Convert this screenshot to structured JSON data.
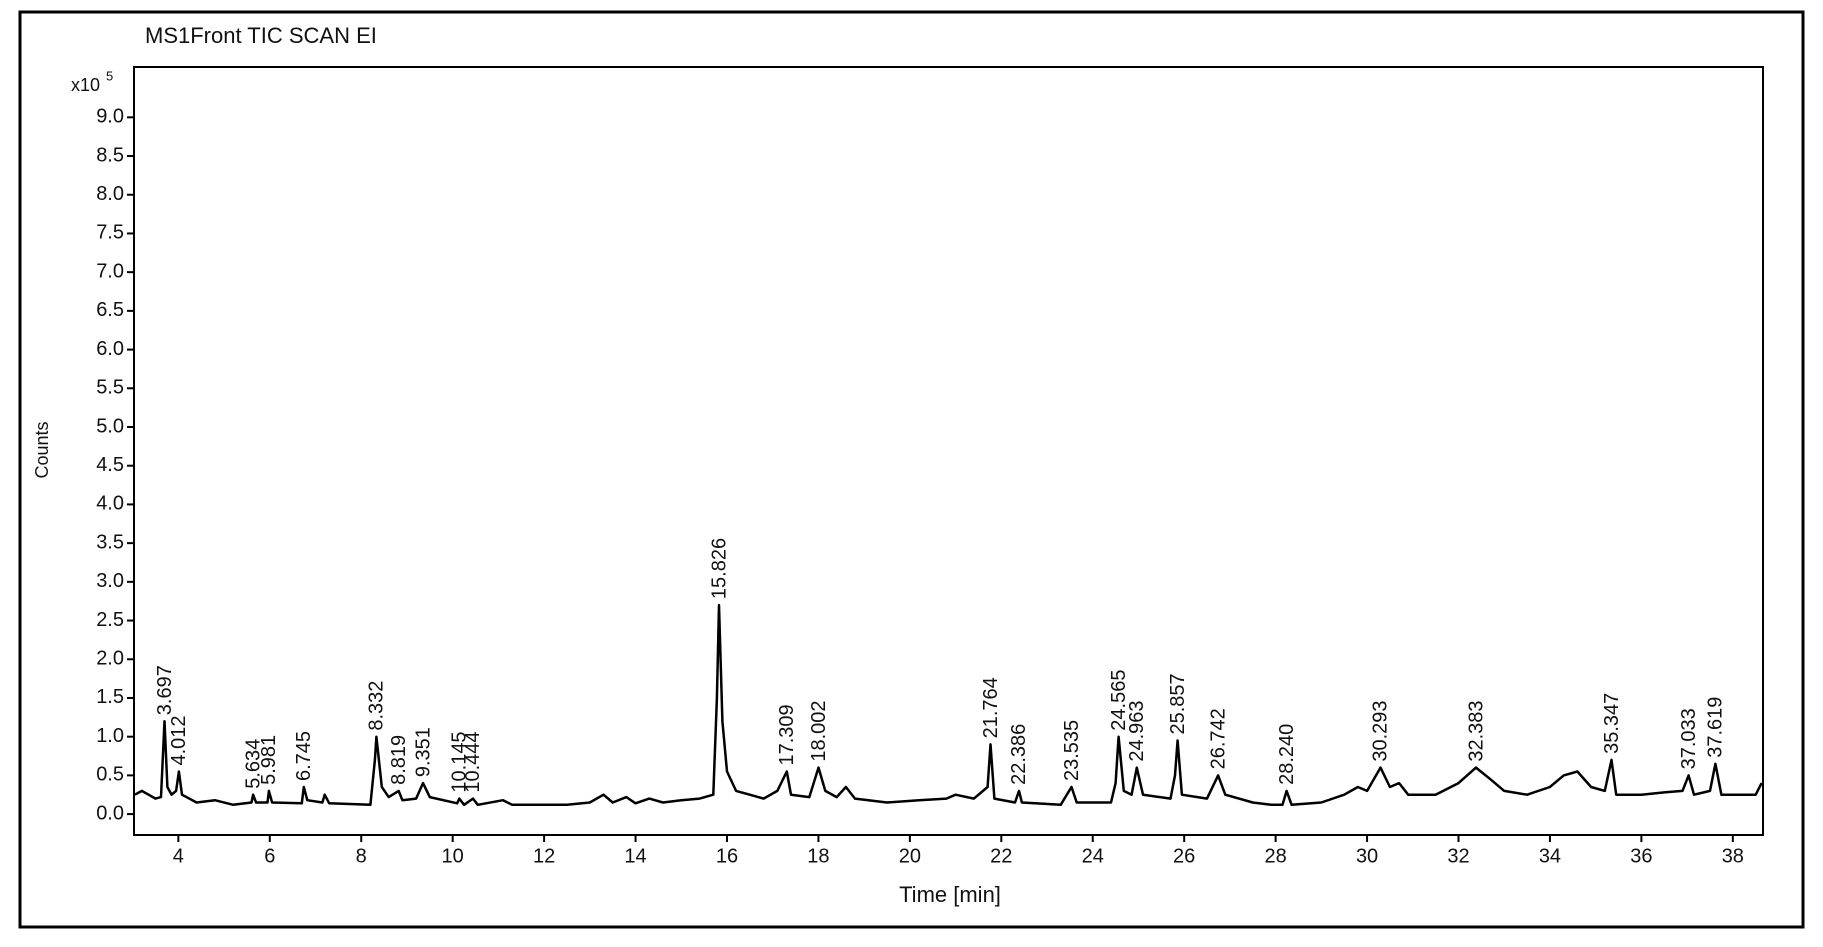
{
  "chart_data": {
    "type": "line",
    "title": "MS1Front TIC SCAN EI",
    "y_label": "Counts",
    "x_label": "Time [min]",
    "y_multiplier": "x10",
    "y_exponent": 5,
    "color": "#000000",
    "grid": false,
    "xlim": [
      3.03,
      38.66
    ],
    "xticks": [
      4,
      6,
      8,
      10,
      12,
      14,
      16,
      18,
      20,
      22,
      24,
      26,
      28,
      30,
      32,
      34,
      36,
      38
    ],
    "ylim": [
      -0.27,
      9.65
    ],
    "yticks": [
      {
        "value": 0,
        "label": "0.0"
      },
      0.5,
      {
        "value": 1,
        "label": "1.0"
      },
      1.5,
      {
        "value": 2,
        "label": "2.0"
      },
      2.5,
      {
        "value": 3,
        "label": "3.0"
      },
      3.5,
      {
        "value": 4,
        "label": "4.0"
      },
      4.5,
      {
        "value": 5,
        "label": "5.0"
      },
      5.5,
      {
        "value": 6,
        "label": "6.0"
      },
      6.5,
      {
        "value": 7,
        "label": "7.0"
      },
      7.5,
      {
        "value": 8,
        "label": "8.0"
      },
      8.5,
      {
        "value": 9,
        "label": "9.0"
      }
    ],
    "x": [
      3.05,
      3.2,
      3.35,
      3.5,
      3.62,
      3.697,
      3.76,
      3.85,
      3.95,
      4.012,
      4.08,
      4.4,
      4.8,
      5.2,
      5.6,
      5.634,
      5.7,
      5.95,
      5.981,
      6.05,
      6.7,
      6.745,
      6.82,
      7.15,
      7.2,
      7.3,
      8.2,
      8.3,
      8.332,
      8.45,
      8.6,
      8.819,
      8.9,
      9.2,
      9.351,
      9.5,
      10.1,
      10.145,
      10.25,
      10.444,
      10.55,
      11.1,
      11.3,
      12.5,
      13.0,
      13.3,
      13.5,
      13.8,
      14.0,
      14.3,
      14.6,
      15.0,
      15.4,
      15.7,
      15.78,
      15.826,
      15.9,
      16.0,
      16.2,
      16.5,
      16.8,
      17.1,
      17.309,
      17.4,
      17.8,
      18.002,
      18.15,
      18.4,
      18.6,
      18.8,
      19.5,
      20.2,
      20.8,
      21.0,
      21.4,
      21.7,
      21.764,
      21.85,
      22.3,
      22.386,
      22.45,
      23.3,
      23.535,
      23.65,
      24.4,
      24.5,
      24.565,
      24.68,
      24.85,
      24.963,
      25.1,
      25.7,
      25.8,
      25.857,
      25.95,
      26.5,
      26.742,
      26.9,
      27.5,
      27.9,
      28.15,
      28.24,
      28.35,
      29.0,
      29.5,
      29.8,
      30.0,
      30.293,
      30.5,
      30.7,
      30.9,
      31.5,
      32.0,
      32.383,
      32.7,
      33.0,
      33.5,
      34.0,
      34.3,
      34.6,
      34.9,
      35.2,
      35.347,
      35.45,
      36.0,
      36.5,
      36.9,
      37.033,
      37.15,
      37.5,
      37.619,
      37.75,
      38.2,
      38.5,
      38.63
    ],
    "values": [
      0.25,
      0.3,
      0.25,
      0.2,
      0.22,
      1.2,
      0.35,
      0.25,
      0.3,
      0.55,
      0.25,
      0.15,
      0.18,
      0.12,
      0.15,
      0.25,
      0.15,
      0.15,
      0.3,
      0.15,
      0.14,
      0.35,
      0.18,
      0.15,
      0.25,
      0.14,
      0.12,
      0.7,
      1.0,
      0.35,
      0.22,
      0.3,
      0.18,
      0.2,
      0.4,
      0.22,
      0.14,
      0.2,
      0.12,
      0.2,
      0.12,
      0.18,
      0.12,
      0.12,
      0.15,
      0.25,
      0.15,
      0.22,
      0.14,
      0.2,
      0.15,
      0.18,
      0.2,
      0.25,
      1.5,
      2.7,
      1.2,
      0.55,
      0.3,
      0.25,
      0.2,
      0.3,
      0.55,
      0.25,
      0.22,
      0.6,
      0.3,
      0.22,
      0.35,
      0.2,
      0.15,
      0.18,
      0.2,
      0.25,
      0.2,
      0.35,
      0.9,
      0.2,
      0.15,
      0.3,
      0.15,
      0.12,
      0.35,
      0.15,
      0.15,
      0.4,
      1.0,
      0.3,
      0.25,
      0.6,
      0.25,
      0.2,
      0.5,
      0.95,
      0.25,
      0.2,
      0.5,
      0.25,
      0.15,
      0.12,
      0.12,
      0.3,
      0.12,
      0.15,
      0.25,
      0.35,
      0.3,
      0.6,
      0.35,
      0.4,
      0.25,
      0.25,
      0.4,
      0.6,
      0.45,
      0.3,
      0.25,
      0.35,
      0.5,
      0.55,
      0.35,
      0.3,
      0.7,
      0.25,
      0.25,
      0.28,
      0.3,
      0.5,
      0.25,
      0.3,
      0.65,
      0.25,
      0.25,
      0.25,
      0.4
    ],
    "annotations": [
      {
        "text": "3.697",
        "x": 3.697,
        "y": 1.2
      },
      {
        "text": "4.012",
        "x": 4.012,
        "y": 0.55
      },
      {
        "text": "5.634",
        "x": 5.634,
        "y": 0.25
      },
      {
        "text": "5.981",
        "x": 5.981,
        "y": 0.3
      },
      {
        "text": "6.745",
        "x": 6.745,
        "y": 0.35
      },
      {
        "text": "8.332",
        "x": 8.332,
        "y": 1.0
      },
      {
        "text": "8.819",
        "x": 8.819,
        "y": 0.3
      },
      {
        "text": "9.351",
        "x": 9.351,
        "y": 0.4
      },
      {
        "text": "10.145",
        "x": 10.145,
        "y": 0.2
      },
      {
        "text": "10.444",
        "x": 10.444,
        "y": 0.2
      },
      {
        "text": "15.826",
        "x": 15.826,
        "y": 2.7
      },
      {
        "text": "17.309",
        "x": 17.309,
        "y": 0.55
      },
      {
        "text": "18.002",
        "x": 18.002,
        "y": 0.6
      },
      {
        "text": "21.764",
        "x": 21.764,
        "y": 0.9
      },
      {
        "text": "22.386",
        "x": 22.386,
        "y": 0.3
      },
      {
        "text": "23.535",
        "x": 23.535,
        "y": 0.35
      },
      {
        "text": "24.565",
        "x": 24.565,
        "y": 1.0
      },
      {
        "text": "24.963",
        "x": 24.963,
        "y": 0.6
      },
      {
        "text": "25.857",
        "x": 25.857,
        "y": 0.95
      },
      {
        "text": "26.742",
        "x": 26.742,
        "y": 0.5
      },
      {
        "text": "28.240",
        "x": 28.24,
        "y": 0.3
      },
      {
        "text": "30.293",
        "x": 30.293,
        "y": 0.6
      },
      {
        "text": "32.383",
        "x": 32.383,
        "y": 0.6
      },
      {
        "text": "35.347",
        "x": 35.347,
        "y": 0.7
      },
      {
        "text": "37.033",
        "x": 37.033,
        "y": 0.5
      },
      {
        "text": "37.619",
        "x": 37.619,
        "y": 0.65
      }
    ]
  }
}
